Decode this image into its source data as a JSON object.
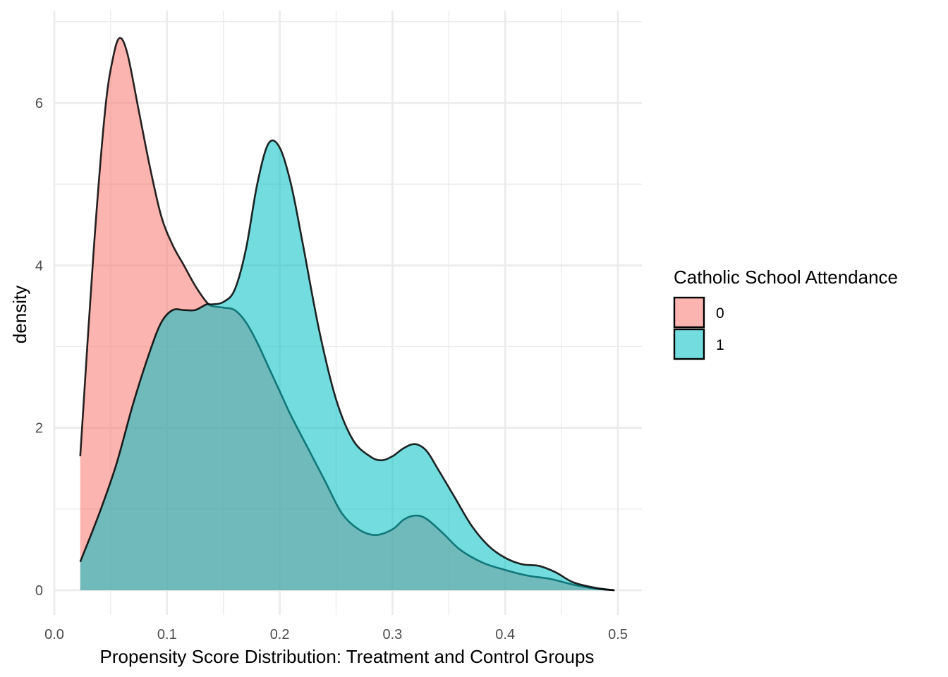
{
  "chart_data": {
    "type": "area",
    "subtype": "density",
    "xlabel": "Propensity Score Distribution: Treatment and Control Groups",
    "ylabel": "density",
    "xlim": [
      0.0,
      0.5
    ],
    "ylim": [
      0,
      6.8
    ],
    "x_ticks": [
      "0.0",
      "0.1",
      "0.2",
      "0.3",
      "0.4",
      "0.5"
    ],
    "y_ticks": [
      "0",
      "2",
      "4",
      "6"
    ],
    "grid": true,
    "legend": {
      "title": "Catholic School Attendance",
      "position": "right",
      "entries": [
        {
          "label": "0",
          "color": "#F8766D"
        },
        {
          "label": "1",
          "color": "#00BFC4"
        }
      ]
    },
    "series": [
      {
        "name": "0",
        "color": "#F8766D",
        "x": [
          0.023,
          0.035,
          0.045,
          0.052,
          0.058,
          0.065,
          0.075,
          0.085,
          0.095,
          0.105,
          0.115,
          0.125,
          0.135,
          0.14,
          0.15,
          0.16,
          0.17,
          0.18,
          0.19,
          0.2,
          0.21,
          0.225,
          0.24,
          0.255,
          0.27,
          0.285,
          0.3,
          0.31,
          0.32,
          0.33,
          0.345,
          0.36,
          0.38,
          0.4,
          0.42,
          0.44,
          0.46,
          0.48,
          0.497
        ],
        "y": [
          1.65,
          4.2,
          5.9,
          6.55,
          6.8,
          6.6,
          5.9,
          5.2,
          4.6,
          4.25,
          4.0,
          3.75,
          3.55,
          3.5,
          3.48,
          3.45,
          3.3,
          3.05,
          2.75,
          2.45,
          2.15,
          1.75,
          1.35,
          0.95,
          0.75,
          0.68,
          0.75,
          0.87,
          0.92,
          0.88,
          0.7,
          0.5,
          0.34,
          0.25,
          0.18,
          0.14,
          0.07,
          0.02,
          0.0
        ]
      },
      {
        "name": "1",
        "color": "#00BFC4",
        "x": [
          0.023,
          0.04,
          0.055,
          0.07,
          0.085,
          0.095,
          0.105,
          0.115,
          0.125,
          0.135,
          0.14,
          0.15,
          0.16,
          0.17,
          0.18,
          0.19,
          0.2,
          0.21,
          0.22,
          0.235,
          0.25,
          0.265,
          0.28,
          0.29,
          0.3,
          0.31,
          0.32,
          0.33,
          0.34,
          0.355,
          0.37,
          0.385,
          0.4,
          0.415,
          0.43,
          0.445,
          0.46,
          0.48,
          0.497
        ],
        "y": [
          0.35,
          0.95,
          1.55,
          2.3,
          2.95,
          3.3,
          3.45,
          3.45,
          3.45,
          3.52,
          3.52,
          3.55,
          3.7,
          4.2,
          5.0,
          5.5,
          5.45,
          5.0,
          4.3,
          3.2,
          2.35,
          1.85,
          1.65,
          1.6,
          1.65,
          1.75,
          1.8,
          1.72,
          1.5,
          1.15,
          0.8,
          0.55,
          0.4,
          0.32,
          0.3,
          0.22,
          0.1,
          0.03,
          0.0
        ]
      }
    ]
  }
}
